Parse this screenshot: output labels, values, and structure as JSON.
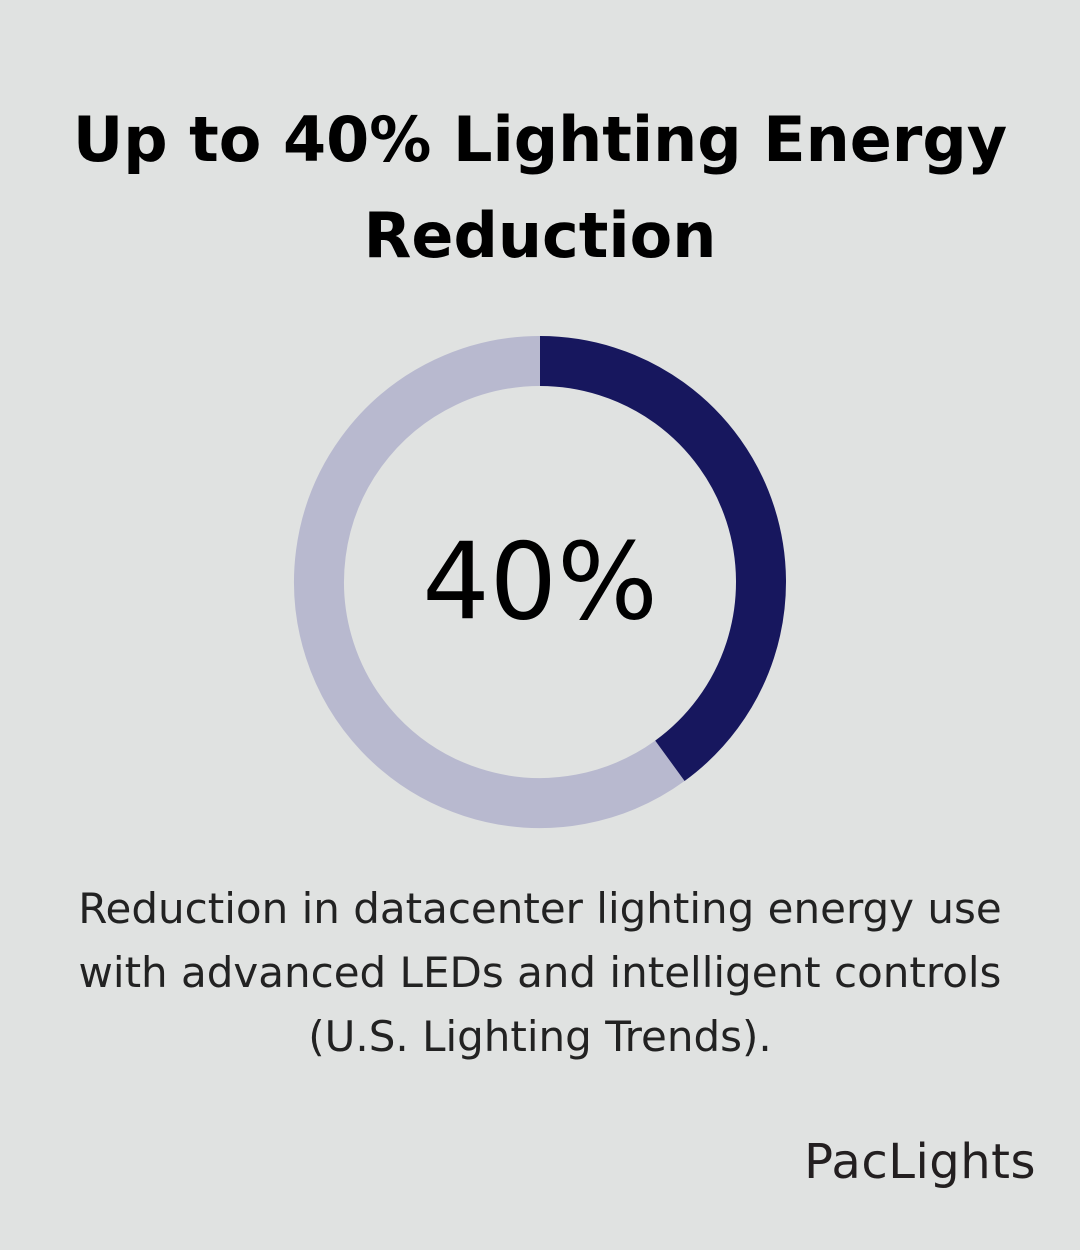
{
  "header": {
    "title_line1": "Up to 40% Lighting Energy",
    "title_line2": "Reduction"
  },
  "chart_data": {
    "type": "pie",
    "donut": true,
    "center_label": "40%",
    "slices": [
      {
        "value": 40,
        "color": "#17175e"
      },
      {
        "value": 60,
        "color": "#b8b9cf"
      }
    ]
  },
  "description": {
    "line1": "Reduction in datacenter lighting energy use",
    "line2": "with advanced LEDs and intelligent controls",
    "line3": "(U.S. Lighting Trends)."
  },
  "brand": {
    "logo_text": "PacLights"
  },
  "colors": {
    "background": "#e0e2e1",
    "accent": "#17175e",
    "track": "#b8b9cf"
  }
}
